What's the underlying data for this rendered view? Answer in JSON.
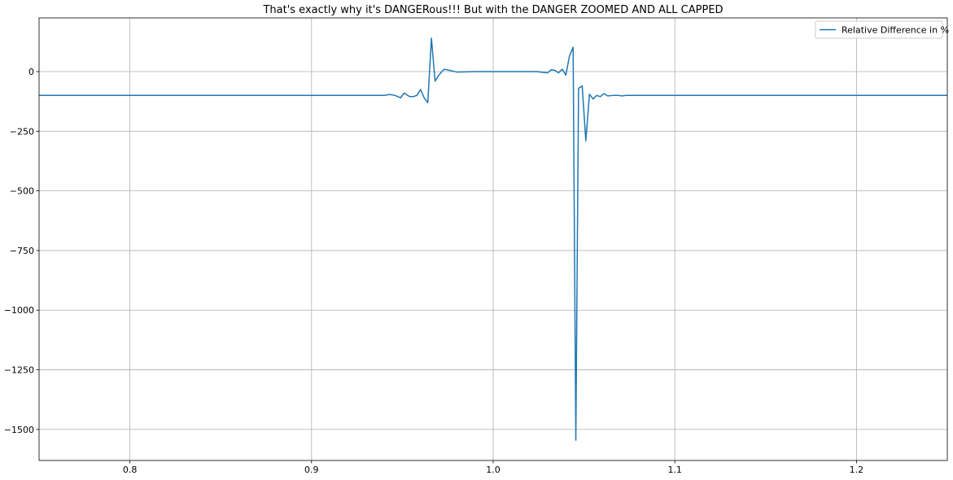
{
  "chart_data": {
    "type": "line",
    "title": "That's exactly why it's DANGERous!!! But with the DANGER ZOOMED AND ALL CAPPED",
    "xlabel": "",
    "ylabel": "",
    "xlim": [
      0.75,
      1.25
    ],
    "ylim": [
      -1630,
      225
    ],
    "grid": true,
    "legend_position": "top-right",
    "line_color": "#1f77b4",
    "xticks": [
      0.8,
      0.9,
      1.0,
      1.1,
      1.2
    ],
    "xtick_labels": [
      "0.8",
      "0.9",
      "1.0",
      "1.1",
      "1.2"
    ],
    "yticks": [
      0,
      -250,
      -500,
      -750,
      -1000,
      -1250,
      -1500
    ],
    "ytick_labels": [
      "0",
      "−250",
      "−500",
      "−750",
      "−1000",
      "−1250",
      "−1500"
    ],
    "series": [
      {
        "name": "Relative Difference in %",
        "x": [
          0.75,
          0.8,
          0.85,
          0.9,
          0.925,
          0.93,
          0.935,
          0.94,
          0.943,
          0.946,
          0.949,
          0.951,
          0.954,
          0.956,
          0.958,
          0.96,
          0.962,
          0.964,
          0.966,
          0.968,
          0.97,
          0.973,
          0.976,
          0.98,
          0.99,
          1.0,
          1.01,
          1.02,
          1.024,
          1.027,
          1.03,
          1.032,
          1.034,
          1.036,
          1.038,
          1.04,
          1.042,
          1.044,
          1.0455,
          1.047,
          1.049,
          1.051,
          1.053,
          1.055,
          1.057,
          1.059,
          1.061,
          1.063,
          1.066,
          1.069,
          1.071,
          1.073,
          1.075,
          1.08,
          1.1,
          1.15,
          1.2,
          1.25
        ],
        "y": [
          -100,
          -100,
          -100,
          -100,
          -100,
          -100,
          -100,
          -100,
          -96,
          -100,
          -110,
          -90,
          -105,
          -105,
          -100,
          -75,
          -110,
          -130,
          140,
          -40,
          -15,
          10,
          5,
          -2,
          0,
          0,
          0,
          0,
          0,
          -3,
          -5,
          8,
          5,
          -5,
          10,
          -15,
          65,
          102,
          -1545,
          -70,
          -60,
          -290,
          -95,
          -115,
          -100,
          -105,
          -92,
          -102,
          -100,
          -100,
          -102,
          -100,
          -100,
          -100,
          -100,
          -100,
          -100,
          -100
        ]
      }
    ]
  }
}
